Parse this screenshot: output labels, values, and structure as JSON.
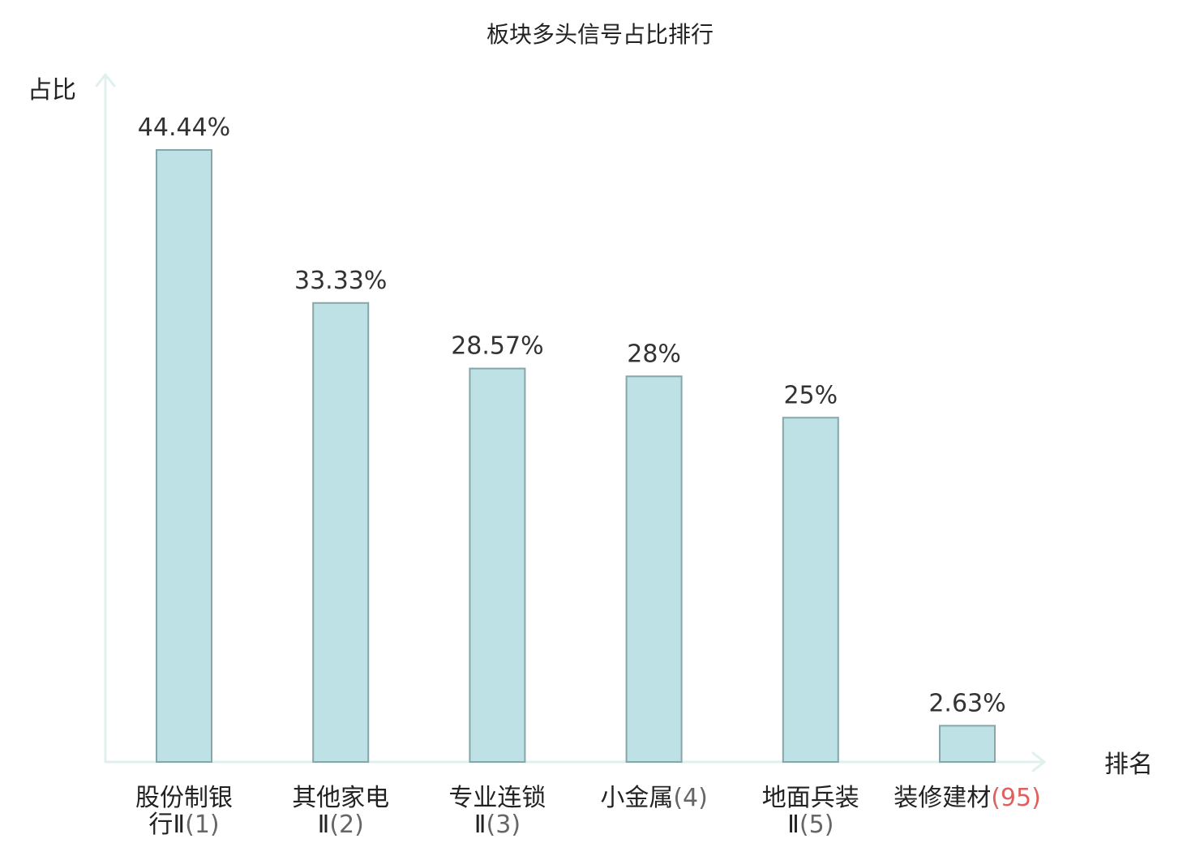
{
  "colors": {
    "bar_fill": "#bde1e4",
    "bar_stroke": "#86a6a9",
    "axis": "#dff0ee",
    "text": "#222222",
    "highlight": "#e02020",
    "highlight_paren": "#e06060",
    "paren": "#666666"
  },
  "chart_data": {
    "type": "bar",
    "title": "板块多头信号占比排行",
    "ylabel": "占比",
    "xlabel": "排名",
    "ylim": [
      0,
      50
    ],
    "grid": false,
    "categories": [
      {
        "lines": [
          "股份制银",
          "行Ⅱ"
        ],
        "rank": "(1)",
        "highlight": false
      },
      {
        "lines": [
          "其他家电",
          "Ⅱ"
        ],
        "rank": "(2)",
        "highlight": false
      },
      {
        "lines": [
          "专业连锁",
          "Ⅱ"
        ],
        "rank": "(3)",
        "highlight": false
      },
      {
        "lines": [
          "小金属"
        ],
        "rank": "(4)",
        "highlight": false
      },
      {
        "lines": [
          "地面兵装",
          "Ⅱ"
        ],
        "rank": "(5)",
        "highlight": false
      },
      {
        "lines": [
          "装修建材"
        ],
        "rank": "(95)",
        "highlight": true
      }
    ],
    "values": [
      44.44,
      33.33,
      28.57,
      28,
      25,
      2.63
    ],
    "value_labels": [
      "44.44%",
      "33.33%",
      "28.57%",
      "28%",
      "25%",
      "2.63%"
    ]
  }
}
